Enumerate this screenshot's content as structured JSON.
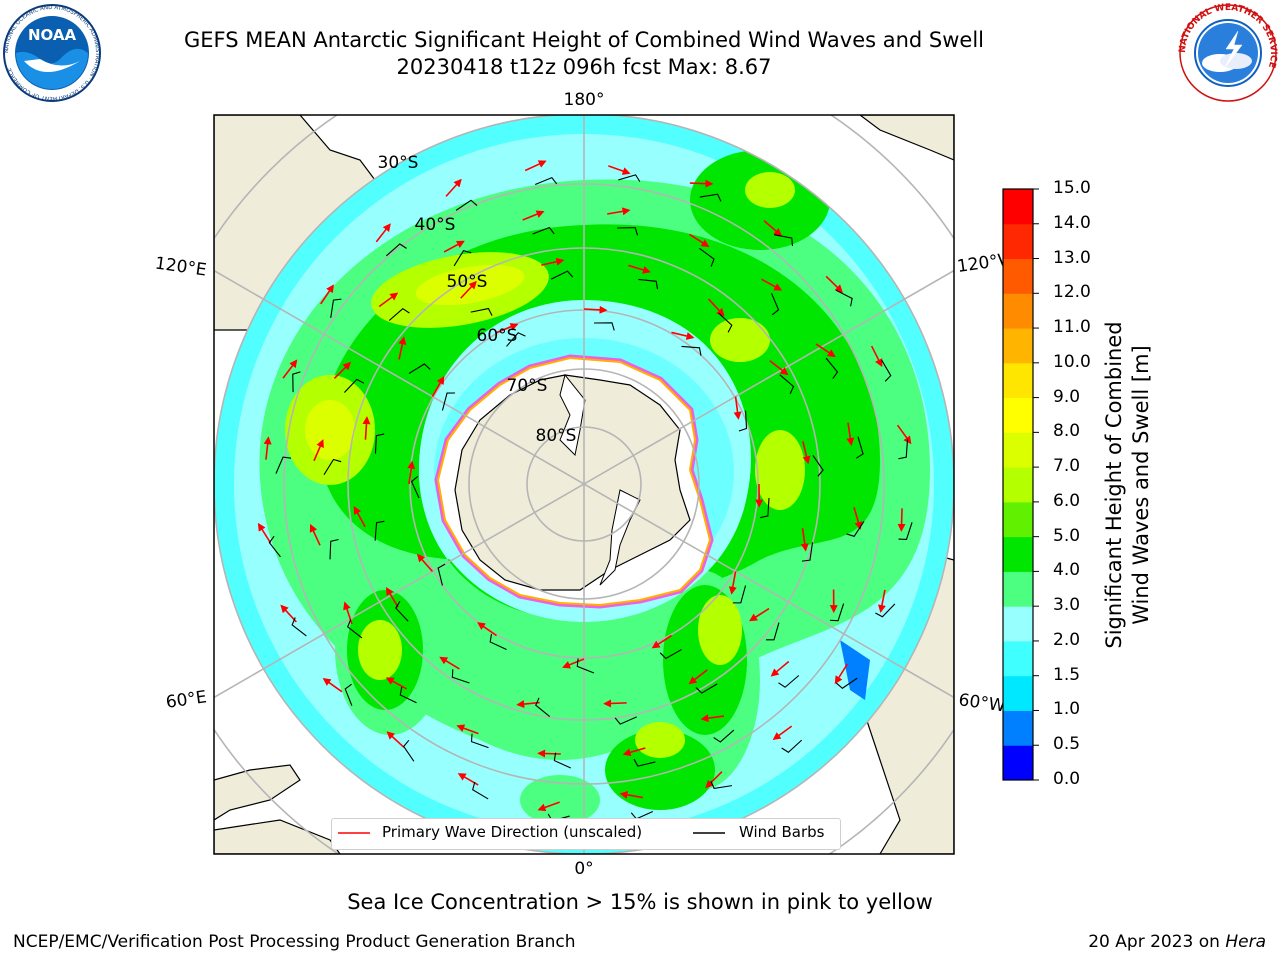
{
  "header": {
    "title_line1": "GEFS MEAN Antarctic Significant Height of Combined Wind Waves and Swell",
    "title_line2": "20230418 t12z 096h fcst   Max: 8.67"
  },
  "logos": {
    "noaa_text": "NOAA",
    "noaa_ring_text": "NATIONAL OCEANIC AND ATMOSPHERIC ADMINISTRATION · U.S. DEPARTMENT OF COMMERCE",
    "nws_ring_text": "NATIONAL WEATHER SERVICE"
  },
  "map": {
    "longitude_labels": {
      "top": "180°",
      "bottom": "0°",
      "left_upper": "120°E",
      "left_lower": "60°E",
      "right_upper": "120°W",
      "right_lower": "60°W"
    },
    "latitude_labels": [
      "30°S",
      "40°S",
      "50°S",
      "60°S",
      "70°S",
      "80°S"
    ],
    "colors": {
      "land": "#efecda",
      "ice_edge": "#ff44dd",
      "wave_arrow": "#ff0000",
      "wind_barb": "#000000",
      "grid": "#b5b5b5"
    }
  },
  "legend": {
    "wave_label": "Primary Wave Direction (unscaled)",
    "wind_label": "Wind Barbs"
  },
  "colorbar": {
    "label_line1": "Significant Height of Combined",
    "label_line2": "Wind Waves and Swell [m]",
    "ticks": [
      "0.0",
      "0.5",
      "1.0",
      "1.5",
      "2.0",
      "3.0",
      "4.0",
      "5.0",
      "6.0",
      "7.0",
      "8.0",
      "9.0",
      "10.0",
      "11.0",
      "12.0",
      "13.0",
      "14.0",
      "15.0"
    ],
    "colors": [
      "#0000ff",
      "#0080ff",
      "#00e8ff",
      "#40ffff",
      "#98ffff",
      "#4cff80",
      "#00e600",
      "#60f000",
      "#b4ff00",
      "#dcff00",
      "#ffff00",
      "#ffe600",
      "#ffb400",
      "#ff8c00",
      "#ff5a00",
      "#ff2800",
      "#ff0000"
    ]
  },
  "note": "Sea Ice Concentration > 15% is shown in pink to yellow",
  "footer": {
    "left": "NCEP/EMC/Verification Post Processing Product Generation Branch",
    "right_date": "20 Apr 2023 on ",
    "right_machine": "Hera"
  }
}
